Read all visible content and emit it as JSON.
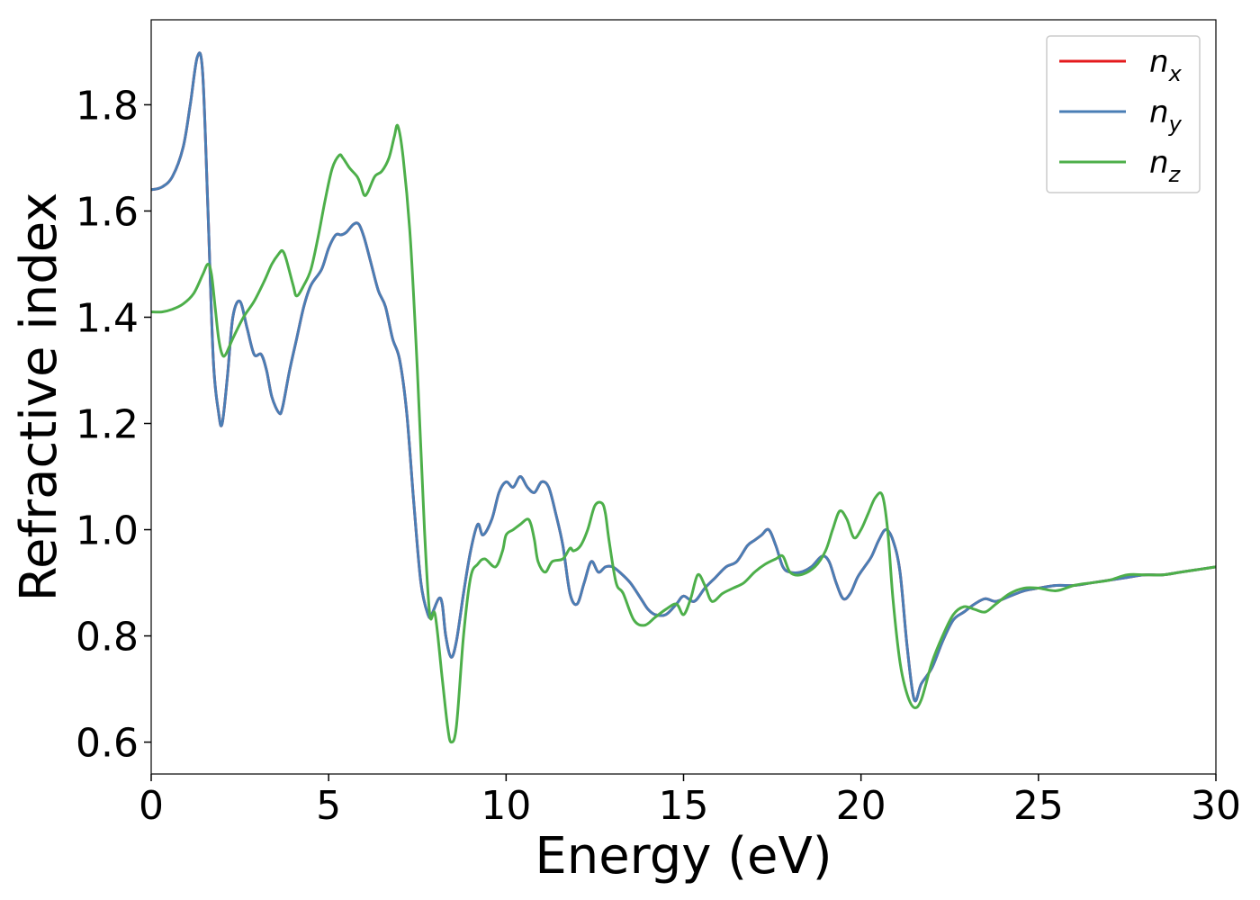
{
  "chart_data": {
    "type": "line",
    "xlabel": "Energy (eV)",
    "ylabel": "Refractive index",
    "xlim": [
      0,
      30
    ],
    "ylim": [
      0.54,
      1.96
    ],
    "xticks": [
      0,
      5,
      10,
      15,
      20,
      25,
      30
    ],
    "xtick_labels": [
      "0",
      "5",
      "10",
      "15",
      "20",
      "25",
      "30"
    ],
    "yticks": [
      0.6,
      0.8,
      1.0,
      1.2,
      1.4,
      1.6,
      1.8
    ],
    "ytick_labels": [
      "0.6",
      "0.8",
      "1.0",
      "1.2",
      "1.4",
      "1.6",
      "1.8"
    ],
    "grid": false,
    "legend_position": "top-right",
    "series": [
      {
        "name": "n_x",
        "legend_base": "n",
        "legend_sub": "x",
        "color": "#e41a1c",
        "x": [
          0,
          0.3,
          0.6,
          0.9,
          1.1,
          1.3,
          1.45,
          1.6,
          1.75,
          1.9,
          2.0,
          2.15,
          2.3,
          2.5,
          2.7,
          2.9,
          3.1,
          3.25,
          3.4,
          3.6,
          3.7,
          3.9,
          4.1,
          4.3,
          4.5,
          4.8,
          5.0,
          5.2,
          5.35,
          5.5,
          5.7,
          5.85,
          6.0,
          6.2,
          6.4,
          6.6,
          6.8,
          7.0,
          7.2,
          7.4,
          7.6,
          7.8,
          7.9,
          8.1,
          8.2,
          8.3,
          8.45,
          8.6,
          8.8,
          9.0,
          9.2,
          9.35,
          9.6,
          9.8,
          10.0,
          10.2,
          10.4,
          10.6,
          10.8,
          11.0,
          11.2,
          11.4,
          11.6,
          11.8,
          12.0,
          12.2,
          12.4,
          12.6,
          12.8,
          13.0,
          13.2,
          13.5,
          13.8,
          14.0,
          14.2,
          14.5,
          14.8,
          15.0,
          15.3,
          15.6,
          15.9,
          16.2,
          16.5,
          16.8,
          17.0,
          17.2,
          17.4,
          17.6,
          17.8,
          18.0,
          18.3,
          18.6,
          18.9,
          19.1,
          19.3,
          19.5,
          19.7,
          19.9,
          20.1,
          20.3,
          20.5,
          20.7,
          20.9,
          21.1,
          21.3,
          21.5,
          21.7,
          22.0,
          22.3,
          22.6,
          22.9,
          23.2,
          23.5,
          23.8,
          24.2,
          24.6,
          25.0,
          25.5,
          26.0,
          26.5,
          27.0,
          27.5,
          28.0,
          28.5,
          29.0,
          29.5,
          30.0
        ],
        "y": [
          1.64,
          1.645,
          1.665,
          1.72,
          1.8,
          1.89,
          1.86,
          1.6,
          1.32,
          1.22,
          1.2,
          1.29,
          1.4,
          1.43,
          1.38,
          1.33,
          1.33,
          1.3,
          1.25,
          1.22,
          1.23,
          1.3,
          1.36,
          1.42,
          1.46,
          1.49,
          1.53,
          1.555,
          1.555,
          1.56,
          1.575,
          1.575,
          1.55,
          1.5,
          1.45,
          1.42,
          1.36,
          1.32,
          1.22,
          1.05,
          0.9,
          0.84,
          0.84,
          0.87,
          0.86,
          0.8,
          0.76,
          0.79,
          0.88,
          0.96,
          1.01,
          0.99,
          1.02,
          1.07,
          1.09,
          1.08,
          1.1,
          1.08,
          1.07,
          1.09,
          1.08,
          1.03,
          0.97,
          0.88,
          0.86,
          0.9,
          0.94,
          0.92,
          0.93,
          0.93,
          0.92,
          0.9,
          0.87,
          0.85,
          0.84,
          0.84,
          0.86,
          0.875,
          0.865,
          0.89,
          0.91,
          0.93,
          0.94,
          0.97,
          0.98,
          0.99,
          1.0,
          0.97,
          0.93,
          0.92,
          0.92,
          0.93,
          0.95,
          0.94,
          0.9,
          0.87,
          0.88,
          0.91,
          0.93,
          0.95,
          0.98,
          1.0,
          0.98,
          0.92,
          0.78,
          0.68,
          0.71,
          0.74,
          0.79,
          0.83,
          0.845,
          0.86,
          0.87,
          0.865,
          0.875,
          0.885,
          0.89,
          0.895,
          0.895,
          0.9,
          0.905,
          0.91,
          0.915,
          0.915,
          0.92,
          0.925,
          0.93
        ]
      },
      {
        "name": "n_y",
        "legend_base": "n",
        "legend_sub": "y",
        "color": "#4a7eb5",
        "x": [
          0,
          0.3,
          0.6,
          0.9,
          1.1,
          1.3,
          1.45,
          1.6,
          1.75,
          1.9,
          2.0,
          2.15,
          2.3,
          2.5,
          2.7,
          2.9,
          3.1,
          3.25,
          3.4,
          3.6,
          3.7,
          3.9,
          4.1,
          4.3,
          4.5,
          4.8,
          5.0,
          5.2,
          5.35,
          5.5,
          5.7,
          5.85,
          6.0,
          6.2,
          6.4,
          6.6,
          6.8,
          7.0,
          7.2,
          7.4,
          7.6,
          7.8,
          7.9,
          8.1,
          8.2,
          8.3,
          8.45,
          8.6,
          8.8,
          9.0,
          9.2,
          9.35,
          9.6,
          9.8,
          10.0,
          10.2,
          10.4,
          10.6,
          10.8,
          11.0,
          11.2,
          11.4,
          11.6,
          11.8,
          12.0,
          12.2,
          12.4,
          12.6,
          12.8,
          13.0,
          13.2,
          13.5,
          13.8,
          14.0,
          14.2,
          14.5,
          14.8,
          15.0,
          15.3,
          15.6,
          15.9,
          16.2,
          16.5,
          16.8,
          17.0,
          17.2,
          17.4,
          17.6,
          17.8,
          18.0,
          18.3,
          18.6,
          18.9,
          19.1,
          19.3,
          19.5,
          19.7,
          19.9,
          20.1,
          20.3,
          20.5,
          20.7,
          20.9,
          21.1,
          21.3,
          21.5,
          21.7,
          22.0,
          22.3,
          22.6,
          22.9,
          23.2,
          23.5,
          23.8,
          24.2,
          24.6,
          25.0,
          25.5,
          26.0,
          26.5,
          27.0,
          27.5,
          28.0,
          28.5,
          29.0,
          29.5,
          30.0
        ],
        "y": [
          1.64,
          1.645,
          1.665,
          1.72,
          1.8,
          1.89,
          1.86,
          1.6,
          1.32,
          1.22,
          1.2,
          1.29,
          1.4,
          1.43,
          1.38,
          1.33,
          1.33,
          1.3,
          1.25,
          1.22,
          1.23,
          1.3,
          1.36,
          1.42,
          1.46,
          1.49,
          1.53,
          1.555,
          1.555,
          1.56,
          1.575,
          1.575,
          1.55,
          1.5,
          1.45,
          1.42,
          1.36,
          1.32,
          1.22,
          1.05,
          0.9,
          0.84,
          0.84,
          0.87,
          0.86,
          0.8,
          0.76,
          0.79,
          0.88,
          0.96,
          1.01,
          0.99,
          1.02,
          1.07,
          1.09,
          1.08,
          1.1,
          1.08,
          1.07,
          1.09,
          1.08,
          1.03,
          0.97,
          0.88,
          0.86,
          0.9,
          0.94,
          0.92,
          0.93,
          0.93,
          0.92,
          0.9,
          0.87,
          0.85,
          0.84,
          0.84,
          0.86,
          0.875,
          0.865,
          0.89,
          0.91,
          0.93,
          0.94,
          0.97,
          0.98,
          0.99,
          1.0,
          0.97,
          0.93,
          0.92,
          0.92,
          0.93,
          0.95,
          0.94,
          0.9,
          0.87,
          0.88,
          0.91,
          0.93,
          0.95,
          0.98,
          1.0,
          0.98,
          0.92,
          0.78,
          0.68,
          0.71,
          0.74,
          0.79,
          0.83,
          0.845,
          0.86,
          0.87,
          0.865,
          0.875,
          0.885,
          0.89,
          0.895,
          0.895,
          0.9,
          0.905,
          0.91,
          0.915,
          0.915,
          0.92,
          0.925,
          0.93
        ]
      },
      {
        "name": "n_z",
        "legend_base": "n",
        "legend_sub": "z",
        "color": "#4daf4a",
        "x": [
          0,
          0.3,
          0.6,
          0.9,
          1.2,
          1.45,
          1.6,
          1.7,
          1.8,
          1.9,
          2.0,
          2.1,
          2.3,
          2.6,
          2.9,
          3.2,
          3.4,
          3.6,
          3.7,
          3.8,
          4.0,
          4.1,
          4.3,
          4.5,
          4.7,
          4.9,
          5.1,
          5.3,
          5.4,
          5.5,
          5.6,
          5.8,
          5.9,
          6.0,
          6.1,
          6.3,
          6.5,
          6.7,
          6.85,
          6.95,
          7.1,
          7.3,
          7.5,
          7.7,
          7.85,
          8.0,
          8.2,
          8.35,
          8.45,
          8.6,
          8.8,
          9.0,
          9.2,
          9.4,
          9.7,
          9.9,
          10.0,
          10.2,
          10.4,
          10.6,
          10.7,
          10.8,
          10.9,
          11.1,
          11.3,
          11.6,
          11.8,
          11.9,
          12.1,
          12.3,
          12.5,
          12.7,
          12.8,
          12.9,
          13.1,
          13.3,
          13.6,
          13.9,
          14.2,
          14.5,
          14.8,
          15.0,
          15.2,
          15.4,
          15.6,
          15.8,
          16.1,
          16.4,
          16.7,
          17.0,
          17.3,
          17.6,
          17.8,
          18.0,
          18.3,
          18.7,
          19.0,
          19.2,
          19.4,
          19.6,
          19.8,
          20.0,
          20.2,
          20.4,
          20.6,
          20.75,
          20.9,
          21.1,
          21.3,
          21.5,
          21.7,
          22.0,
          22.3,
          22.6,
          22.9,
          23.2,
          23.5,
          23.8,
          24.2,
          24.6,
          25.0,
          25.5,
          26.0,
          26.5,
          27.0,
          27.5,
          28.0,
          28.5,
          29.0,
          29.5,
          30.0
        ],
        "y": [
          1.41,
          1.41,
          1.415,
          1.425,
          1.445,
          1.48,
          1.5,
          1.48,
          1.42,
          1.36,
          1.33,
          1.33,
          1.36,
          1.4,
          1.43,
          1.47,
          1.5,
          1.52,
          1.525,
          1.51,
          1.46,
          1.44,
          1.46,
          1.49,
          1.55,
          1.62,
          1.68,
          1.705,
          1.7,
          1.69,
          1.68,
          1.665,
          1.65,
          1.63,
          1.635,
          1.665,
          1.675,
          1.7,
          1.74,
          1.76,
          1.7,
          1.55,
          1.3,
          1.0,
          0.84,
          0.84,
          0.72,
          0.63,
          0.6,
          0.63,
          0.8,
          0.91,
          0.935,
          0.945,
          0.93,
          0.96,
          0.99,
          1.0,
          1.01,
          1.02,
          1.01,
          0.98,
          0.94,
          0.92,
          0.94,
          0.945,
          0.965,
          0.96,
          0.97,
          1.0,
          1.045,
          1.05,
          1.03,
          0.98,
          0.9,
          0.88,
          0.83,
          0.82,
          0.835,
          0.85,
          0.86,
          0.84,
          0.87,
          0.915,
          0.895,
          0.865,
          0.88,
          0.89,
          0.9,
          0.92,
          0.935,
          0.945,
          0.95,
          0.92,
          0.915,
          0.93,
          0.96,
          1.0,
          1.035,
          1.02,
          0.985,
          1.0,
          1.03,
          1.06,
          1.065,
          1.0,
          0.87,
          0.75,
          0.69,
          0.665,
          0.68,
          0.75,
          0.8,
          0.84,
          0.855,
          0.85,
          0.845,
          0.86,
          0.88,
          0.89,
          0.89,
          0.885,
          0.895,
          0.9,
          0.905,
          0.915,
          0.915,
          0.915,
          0.92,
          0.925,
          0.93
        ]
      }
    ]
  }
}
